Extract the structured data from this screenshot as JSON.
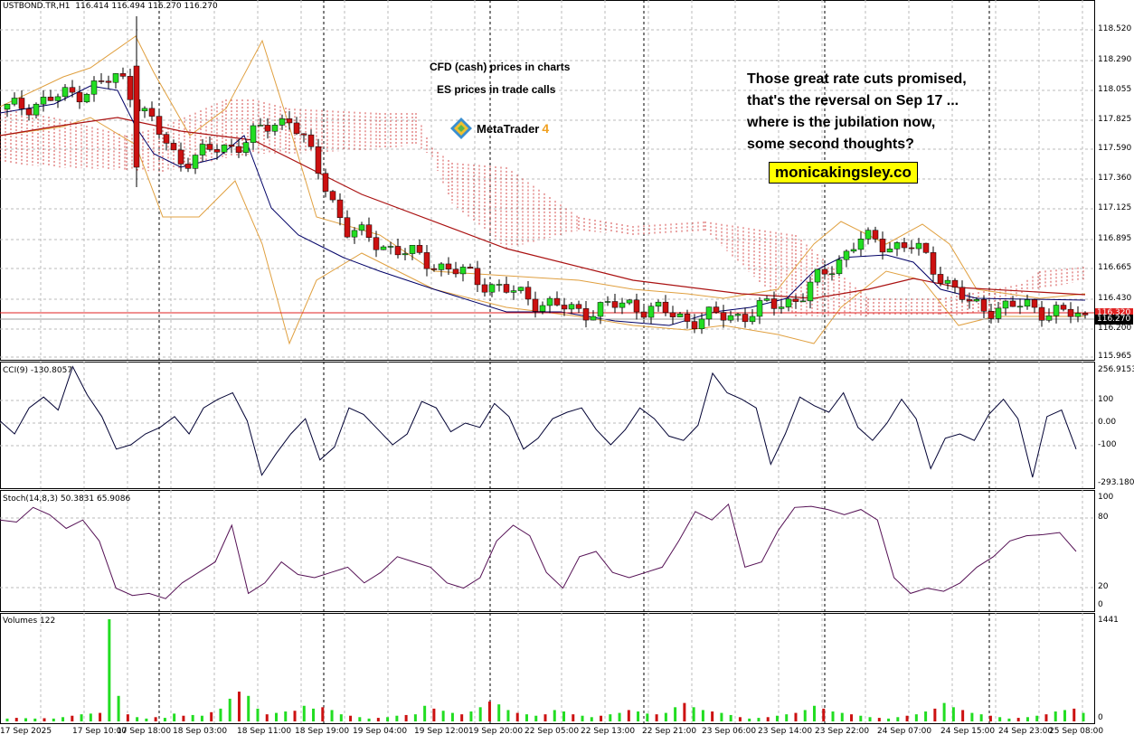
{
  "header": {
    "symbol": "USTBOND.TR,H1",
    "ohlc": "116.414 116.494 116.270 116.270"
  },
  "annotations": {
    "cfd_note": "CFD (cash) prices in charts",
    "es_note": "ES prices in trade calls",
    "platform_name": "MetaTrader",
    "platform_version": "4",
    "comment_line1": "Those great rate cuts promised,",
    "comment_line2": "that's the reversal on Sep 17 ...",
    "comment_line3": "where is the jubilation now,",
    "comment_line4": "some second thoughts?",
    "website": "monicakingsley.co"
  },
  "price_axis": {
    "ticks": [
      "118.520",
      "118.290",
      "118.055",
      "117.825",
      "117.590",
      "117.360",
      "117.125",
      "116.895",
      "116.665",
      "116.430",
      "116.200",
      "115.965"
    ],
    "bid_tag": "116.320",
    "last_tag": "116.270"
  },
  "cci_pane": {
    "label": "CCI(9) -130.8057",
    "ticks": [
      "256.9153",
      "100",
      "0.00",
      "-100",
      "-293.1804"
    ]
  },
  "stoch_pane": {
    "label": "Stoch(14,8,3) 50.3831 65.9086",
    "ticks": [
      "100",
      "80",
      "20",
      "0"
    ]
  },
  "volume_pane": {
    "label": "Volumes 122",
    "ticks": [
      "1441",
      "0"
    ]
  },
  "time_axis": {
    "labels": [
      "17 Sep 2025",
      "17 Sep 10:00",
      "17 Sep 18:00",
      "18 Sep 03:00",
      "18 Sep 11:00",
      "18 Sep 19:00",
      "19 Sep 04:00",
      "19 Sep 12:00",
      "19 Sep 20:00",
      "22 Sep 05:00",
      "22 Sep 13:00",
      "22 Sep 21:00",
      "23 Sep 06:00",
      "23 Sep 14:00",
      "23 Sep 22:00",
      "24 Sep 07:00",
      "24 Sep 15:00",
      "24 Sep 23:00",
      "25 Sep 08:00"
    ]
  },
  "colors": {
    "bull": "#22dd22",
    "bear": "#cc1111",
    "ma_fast": "#000066",
    "ma_slow": "#aa1111",
    "bands": "#e0a040",
    "cloud": "#cc2222",
    "cci_line": "#000033",
    "stoch_line": "#551155",
    "bid_tag_bg": "#e02020",
    "last_tag_bg": "#000000"
  },
  "chart_data": [
    {
      "type": "candlestick",
      "title": "USTBOND.TR,H1",
      "ylim": [
        115.965,
        118.62
      ],
      "x": [
        "17 Sep 2025",
        "17 Sep 10:00",
        "17 Sep 18:00",
        "18 Sep 03:00",
        "18 Sep 11:00",
        "18 Sep 19:00",
        "19 Sep 04:00",
        "19 Sep 12:00",
        "19 Sep 20:00",
        "22 Sep 05:00",
        "22 Sep 13:00",
        "22 Sep 21:00",
        "23 Sep 06:00",
        "23 Sep 14:00",
        "23 Sep 22:00",
        "24 Sep 07:00",
        "24 Sep 15:00",
        "24 Sep 23:00",
        "25 Sep 08:00"
      ],
      "close_path": [
        117.9,
        118.0,
        118.15,
        117.5,
        117.62,
        117.85,
        116.95,
        116.78,
        116.62,
        116.45,
        116.32,
        116.38,
        116.26,
        116.3,
        116.44,
        116.88,
        116.82,
        116.35,
        116.36,
        116.27
      ],
      "last": {
        "open": 116.414,
        "high": 116.494,
        "low": 116.27,
        "close": 116.27
      }
    },
    {
      "type": "line",
      "title": "CCI(9) -130.8057",
      "ylim": [
        -293.1804,
        256.9153
      ],
      "values": [
        0,
        -60,
        60,
        110,
        50,
        250,
        120,
        20,
        -130,
        -110,
        -60,
        -30,
        20,
        -60,
        60,
        100,
        130,
        0,
        -250,
        -150,
        -60,
        10,
        -180,
        -120,
        60,
        30,
        -40,
        -110,
        -60,
        90,
        60,
        -50,
        -10,
        -30,
        80,
        20,
        -130,
        -80,
        10,
        40,
        60,
        -40,
        -110,
        -40,
        60,
        10,
        -70,
        -90,
        -20,
        220,
        130,
        100,
        60,
        -200,
        -60,
        110,
        70,
        40,
        130,
        -30,
        -90,
        -10,
        100,
        10,
        -220,
        -80,
        -60,
        -90,
        30,
        100,
        10,
        -260,
        20,
        50,
        -130
      ]
    },
    {
      "type": "line",
      "title": "Stoch(14,8,3) 50.3831 65.9086",
      "ylim": [
        0,
        100
      ],
      "values": [
        80,
        78,
        92,
        85,
        72,
        80,
        60,
        15,
        8,
        10,
        5,
        20,
        30,
        40,
        75,
        10,
        20,
        40,
        28,
        25,
        30,
        35,
        20,
        30,
        45,
        40,
        35,
        20,
        15,
        25,
        60,
        75,
        65,
        30,
        15,
        45,
        50,
        30,
        25,
        30,
        35,
        60,
        88,
        80,
        95,
        35,
        40,
        70,
        92,
        93,
        90,
        85,
        90,
        80,
        25,
        10,
        15,
        12,
        20,
        35,
        45,
        60,
        65,
        66,
        68,
        50
      ]
    },
    {
      "type": "bar",
      "title": "Volumes 122",
      "ylim": [
        0,
        1441
      ],
      "values": [
        40,
        50,
        45,
        40,
        45,
        40,
        60,
        80,
        100,
        110,
        120,
        1441,
        360,
        100,
        60,
        40,
        60,
        50,
        110,
        80,
        90,
        80,
        130,
        180,
        320,
        420,
        360,
        180,
        100,
        120,
        140,
        150,
        220,
        180,
        200,
        160,
        100,
        80,
        60,
        40,
        50,
        60,
        80,
        90,
        100,
        220,
        180,
        150,
        120,
        100,
        140,
        200,
        280,
        240,
        160,
        120,
        100,
        80,
        100,
        160,
        140,
        100,
        80,
        60,
        80,
        100,
        120,
        160,
        140,
        110,
        100,
        120,
        200,
        260,
        200,
        160,
        140,
        120,
        90,
        60,
        40,
        50,
        60,
        80,
        100,
        120,
        160,
        220,
        180,
        140,
        120,
        100,
        80,
        60,
        50,
        40,
        60,
        80,
        100,
        140,
        180,
        260,
        200,
        160,
        120,
        100,
        80,
        60,
        40,
        50,
        60,
        80,
        100,
        140,
        160,
        180,
        120
      ]
    }
  ]
}
